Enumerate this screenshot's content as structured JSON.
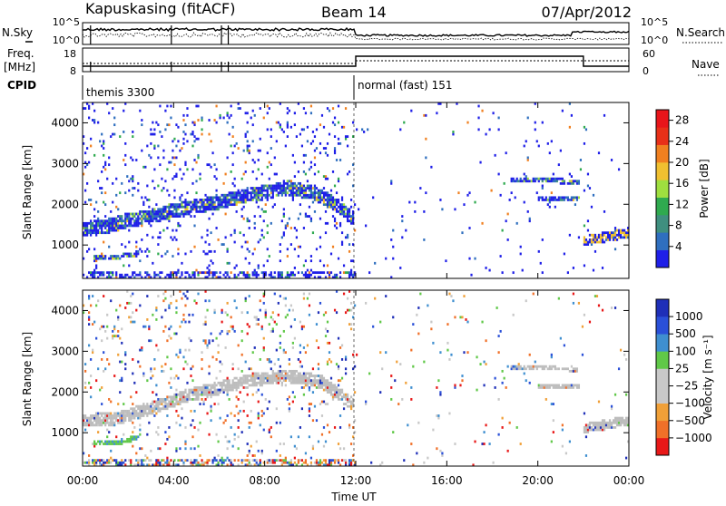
{
  "header": {
    "station": "Kapuskasing (fitACF)",
    "beam": "Beam 14",
    "date": "07/Apr/2012"
  },
  "colors": {
    "power": [
      "#1f1fe8",
      "#2f6fbf",
      "#3f8f7f",
      "#2faa4f",
      "#9fdf3f",
      "#f0c030",
      "#f08020",
      "#e83018",
      "#e8151a"
    ],
    "velocity": [
      "#e81818",
      "#f07028",
      "#f0a038",
      "#c8c8c8",
      "#c8c8c8",
      "#60c848",
      "#3f8fd0",
      "#2a50d8",
      "#1f2fb8"
    ],
    "ground": "#bdbdbd"
  },
  "top_panels": {
    "nsky_label": "N.Sky",
    "nsearch_label": "N.Search",
    "freq_label_1": "Freq.",
    "freq_label_2": "[MHz]",
    "nave_label": "Nave",
    "cpid_label": "CPID",
    "nsky_ticks": [
      "10^5",
      "10^0"
    ],
    "nsearch_ticks": [
      "10^5",
      "10^0"
    ],
    "freq_ticks": [
      "18",
      "8"
    ],
    "nave_ticks": [
      "60",
      "0"
    ],
    "cpid_segments": [
      {
        "start_hour": 0,
        "end_hour": 12,
        "label": "themis 3300"
      },
      {
        "start_hour": 12,
        "end_hour": 24,
        "label": "normal (fast) 151"
      }
    ]
  },
  "chart_data": [
    {
      "type": "heatmap",
      "name": "power",
      "ylabel": "Slant Range [km]",
      "xlabel": "",
      "x_range_hours": [
        0,
        24
      ],
      "ylim": [
        180,
        4500
      ],
      "y_ticks": [
        1000,
        2000,
        3000,
        4000
      ],
      "colorbar_label": "Power [dB]",
      "colorbar_range": [
        0,
        30
      ],
      "colorbar_ticks": [
        "4",
        "8",
        "12",
        "16",
        "20",
        "24",
        "28"
      ],
      "echo_bands": [
        {
          "points": [
            [
              0.0,
              1400
            ],
            [
              1.0,
              1450
            ],
            [
              2.0,
              1600
            ],
            [
              3.0,
              1700
            ],
            [
              4.0,
              1850
            ],
            [
              5.0,
              1950
            ],
            [
              6.0,
              2050
            ],
            [
              7.0,
              2200
            ],
            [
              8.0,
              2300
            ],
            [
              9.0,
              2400
            ],
            [
              10.0,
              2300
            ],
            [
              11.0,
              2050
            ],
            [
              11.9,
              1650
            ]
          ],
          "width": 350
        },
        {
          "points": [
            [
              0.5,
              700
            ],
            [
              1.5,
              700
            ],
            [
              2.5,
              800
            ]
          ],
          "width": 120
        },
        {
          "points": [
            [
              18.8,
              2620
            ],
            [
              20.0,
              2600
            ],
            [
              21.8,
              2550
            ]
          ],
          "width": 120
        },
        {
          "points": [
            [
              20.0,
              2150
            ],
            [
              21.8,
              2150
            ]
          ],
          "width": 120
        },
        {
          "points": [
            [
              22.0,
              1100
            ],
            [
              23.0,
              1200
            ],
            [
              24.0,
              1300
            ]
          ],
          "width": 250
        }
      ]
    },
    {
      "type": "heatmap",
      "name": "velocity",
      "ylabel": "Slant Range [km]",
      "xlabel": "Time UT",
      "x_range_hours": [
        0,
        24
      ],
      "x_ticks": [
        "00:00",
        "04:00",
        "08:00",
        "12:00",
        "16:00",
        "20:00",
        "00:00"
      ],
      "ylim": [
        180,
        4500
      ],
      "y_ticks": [
        1000,
        2000,
        3000,
        4000
      ],
      "colorbar_label": "Velocity [m s⁻¹]",
      "colorbar_ticks": [
        "1000",
        "500",
        "100",
        "25",
        "−25",
        "−100",
        "−500",
        "−1000"
      ],
      "echo_bands": [
        {
          "points": [
            [
              0.0,
              1300
            ],
            [
              1.5,
              1350
            ],
            [
              3.0,
              1600
            ],
            [
              4.5,
              1900
            ],
            [
              6.0,
              2100
            ],
            [
              7.5,
              2300
            ],
            [
              9.0,
              2400
            ],
            [
              10.5,
              2250
            ],
            [
              11.9,
              1700
            ]
          ],
          "width": 320
        },
        {
          "points": [
            [
              0.5,
              750
            ],
            [
              1.5,
              750
            ],
            [
              2.5,
              900
            ]
          ],
          "width": 120
        },
        {
          "points": [
            [
              18.8,
              2620
            ],
            [
              20.0,
              2600
            ],
            [
              21.8,
              2550
            ]
          ],
          "width": 100
        },
        {
          "points": [
            [
              20.0,
              2150
            ],
            [
              21.8,
              2150
            ]
          ],
          "width": 120
        },
        {
          "points": [
            [
              22.0,
              1100
            ],
            [
              23.0,
              1200
            ],
            [
              24.0,
              1300
            ]
          ],
          "width": 250
        }
      ]
    }
  ]
}
